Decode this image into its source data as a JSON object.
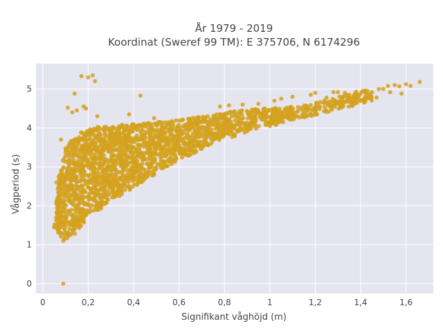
{
  "chart_data": {
    "type": "scatter",
    "title_line1": "År 1979 - 2019",
    "title_line2": "Koordinat (Sweref 99 TM): E 375706, N 6174296",
    "xlabel": "Signifikant våghöjd (m)",
    "ylabel": "Vågperiod (s)",
    "xlim": [
      -0.03,
      1.72
    ],
    "ylim": [
      -0.25,
      5.65
    ],
    "x_ticks": [
      0,
      0.2,
      0.4,
      0.6,
      0.8,
      1,
      1.2,
      1.4,
      1.6
    ],
    "x_tick_labels": [
      "0",
      "0,2",
      "0,4",
      "0,6",
      "0,8",
      "1",
      "1,2",
      "1,4",
      "1,6"
    ],
    "y_ticks": [
      0,
      1,
      2,
      3,
      4,
      5
    ],
    "y_tick_labels": [
      "0",
      "1",
      "2",
      "3",
      "4",
      "5"
    ],
    "grid": true,
    "marker_color": "#D4A21E",
    "background_color": "#E5E5EF",
    "series": [
      {
        "points": [
          [
            0.09,
            0.0
          ],
          [
            0.17,
            5.33
          ],
          [
            0.2,
            5.3
          ],
          [
            0.22,
            5.35
          ],
          [
            0.23,
            5.2
          ],
          [
            0.14,
            4.88
          ],
          [
            0.43,
            4.83
          ],
          [
            0.11,
            4.52
          ],
          [
            0.15,
            4.45
          ],
          [
            0.18,
            4.55
          ],
          [
            0.19,
            4.5
          ],
          [
            0.13,
            4.4
          ],
          [
            0.38,
            4.35
          ],
          [
            0.49,
            4.25
          ],
          [
            0.24,
            4.3
          ],
          [
            0.08,
            3.7
          ],
          [
            0.06,
            2.6
          ],
          [
            0.07,
            2.1
          ],
          [
            0.09,
            1.1
          ],
          [
            0.05,
            1.45
          ],
          [
            0.78,
            4.55
          ],
          [
            0.82,
            4.58
          ],
          [
            0.88,
            4.6
          ],
          [
            0.95,
            4.62
          ],
          [
            1.02,
            4.7
          ],
          [
            1.05,
            4.75
          ],
          [
            1.1,
            4.8
          ],
          [
            1.18,
            4.85
          ],
          [
            1.2,
            4.9
          ],
          [
            1.25,
            4.78
          ],
          [
            1.28,
            4.92
          ],
          [
            1.3,
            4.92
          ],
          [
            1.33,
            4.9
          ],
          [
            1.35,
            4.85
          ],
          [
            1.38,
            4.93
          ],
          [
            1.4,
            4.88
          ],
          [
            1.43,
            4.95
          ],
          [
            1.45,
            4.92
          ],
          [
            1.48,
            5.0
          ],
          [
            1.5,
            5.0
          ],
          [
            1.52,
            5.08
          ],
          [
            1.55,
            5.1
          ],
          [
            1.57,
            5.07
          ],
          [
            1.6,
            5.12
          ],
          [
            1.62,
            5.08
          ],
          [
            1.66,
            5.18
          ],
          [
            1.58,
            4.88
          ],
          [
            1.47,
            4.78
          ],
          [
            1.53,
            4.92
          ],
          [
            1.42,
            4.75
          ]
        ]
      }
    ]
  }
}
